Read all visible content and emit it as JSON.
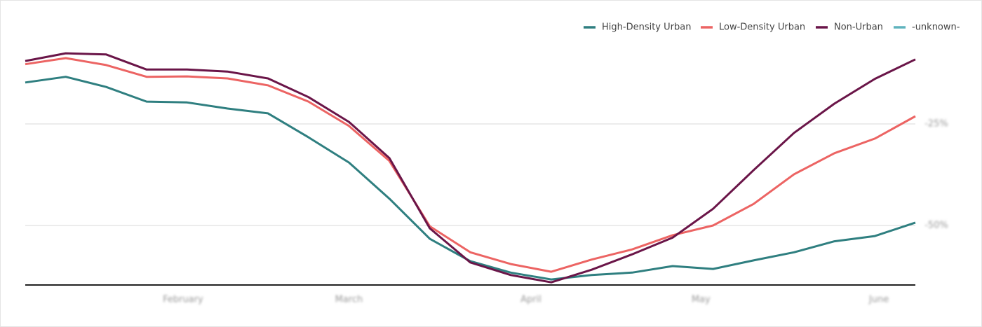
{
  "chart_data": {
    "type": "line",
    "x": [
      0,
      1,
      2,
      3,
      4,
      5,
      6,
      7,
      8,
      9,
      10,
      11,
      12,
      13,
      14,
      15,
      16,
      17,
      18,
      19,
      20,
      21,
      22
    ],
    "xlim": [
      0,
      22
    ],
    "xticks": [
      {
        "value": 3.9,
        "label": "February"
      },
      {
        "value": 8,
        "label": "March"
      },
      {
        "value": 12.5,
        "label": "April"
      },
      {
        "value": 16.7,
        "label": "May"
      },
      {
        "value": 21.1,
        "label": "June"
      }
    ],
    "ylim": [
      -65,
      0
    ],
    "yticks": [
      {
        "value": -50,
        "label": "-50%"
      },
      {
        "value": -25,
        "label": "-25%"
      }
    ],
    "grid": true,
    "legend": "top-right",
    "series": [
      {
        "name": "High-Density Urban",
        "color": "#2f7f80",
        "values": [
          -14.8,
          -13.4,
          -15.9,
          -19.5,
          -19.7,
          -21.2,
          -22.4,
          -28.3,
          -34.5,
          -43.4,
          -53.3,
          -58.8,
          -61.6,
          -63.3,
          -62.2,
          -61.6,
          -60.0,
          -60.7,
          -58.6,
          -56.6,
          -53.9,
          -52.6,
          -49.3
        ]
      },
      {
        "name": "Low-Density Urban",
        "color": "#ec6463",
        "values": [
          -10.3,
          -8.8,
          -10.5,
          -13.4,
          -13.3,
          -13.8,
          -15.5,
          -19.5,
          -25.5,
          -34.1,
          -50.2,
          -56.6,
          -59.5,
          -61.4,
          -58.4,
          -55.9,
          -52.4,
          -50.0,
          -44.7,
          -37.4,
          -32.2,
          -28.6,
          -23.1
        ]
      },
      {
        "name": "Non-Urban",
        "color": "#6a1548",
        "values": [
          -9.5,
          -7.6,
          -7.9,
          -11.6,
          -11.6,
          -12.1,
          -13.8,
          -18.4,
          -24.5,
          -33.4,
          -50.7,
          -59.1,
          -62.2,
          -64.0,
          -60.9,
          -57.1,
          -53.0,
          -45.9,
          -36.4,
          -27.2,
          -20.0,
          -13.9,
          -9.1
        ]
      },
      {
        "name": "-unknown-",
        "color": "#5fb3bd",
        "values": [
          null,
          null,
          null,
          null,
          null,
          null,
          null,
          null,
          null,
          null,
          null,
          null,
          null,
          null,
          null,
          null,
          null,
          null,
          null,
          null,
          null,
          null,
          null
        ]
      }
    ]
  }
}
